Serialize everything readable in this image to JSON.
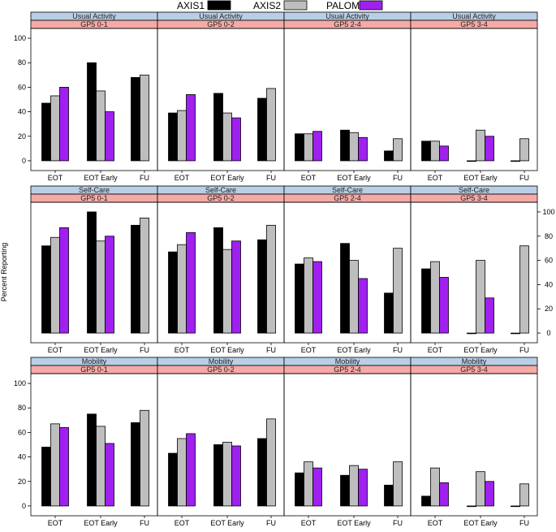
{
  "chart_data": {
    "type": "bar",
    "layout": "lattice 4 columns x 3 rows",
    "ylabel": "Percent Reporting",
    "ylim": [
      -8,
      108
    ],
    "yticks": [
      0,
      20,
      40,
      60,
      80,
      100
    ],
    "categories": [
      "EOT",
      "EOT Early",
      "FU"
    ],
    "legend": {
      "placement": "top",
      "items": [
        {
          "name": "AXIS1",
          "color": "#000000"
        },
        {
          "name": "AXIS2",
          "color": "#bebebe"
        },
        {
          "name": "PALOMA",
          "color": "#a020f0"
        }
      ]
    },
    "colors": {
      "strip_top": "#b8cfe6",
      "strip_bottom": "#f5aaa6"
    },
    "rows": [
      {
        "domain": "Usual Activity",
        "panels": [
          {
            "group": "GP5 0-1",
            "series": [
              {
                "name": "AXIS1",
                "values": [
                  47,
                  80,
                  68
                ]
              },
              {
                "name": "AXIS2",
                "values": [
                  53,
                  57,
                  70
                ]
              },
              {
                "name": "PALOMA",
                "values": [
                  60,
                  40,
                  null
                ]
              }
            ]
          },
          {
            "group": "GP5 0-2",
            "series": [
              {
                "name": "AXIS1",
                "values": [
                  39,
                  55,
                  51
                ]
              },
              {
                "name": "AXIS2",
                "values": [
                  41,
                  39,
                  59
                ]
              },
              {
                "name": "PALOMA",
                "values": [
                  54,
                  35,
                  null
                ]
              }
            ]
          },
          {
            "group": "GP5 2-4",
            "series": [
              {
                "name": "AXIS1",
                "values": [
                  22,
                  25,
                  8
                ]
              },
              {
                "name": "AXIS2",
                "values": [
                  22,
                  23,
                  18
                ]
              },
              {
                "name": "PALOMA",
                "values": [
                  24,
                  19,
                  null
                ]
              }
            ]
          },
          {
            "group": "GP5 3-4",
            "series": [
              {
                "name": "AXIS1",
                "values": [
                  16,
                  0,
                  0
                ]
              },
              {
                "name": "AXIS2",
                "values": [
                  16,
                  25,
                  18
                ]
              },
              {
                "name": "PALOMA",
                "values": [
                  12,
                  20,
                  null
                ]
              }
            ]
          }
        ]
      },
      {
        "domain": "Self-Care",
        "panels": [
          {
            "group": "GP5 0-1",
            "series": [
              {
                "name": "AXIS1",
                "values": [
                  72,
                  100,
                  89
                ]
              },
              {
                "name": "AXIS2",
                "values": [
                  79,
                  76,
                  95
                ]
              },
              {
                "name": "PALOMA",
                "values": [
                  87,
                  80,
                  null
                ]
              }
            ]
          },
          {
            "group": "GP5 0-2",
            "series": [
              {
                "name": "AXIS1",
                "values": [
                  67,
                  87,
                  77
                ]
              },
              {
                "name": "AXIS2",
                "values": [
                  73,
                  69,
                  89
                ]
              },
              {
                "name": "PALOMA",
                "values": [
                  83,
                  76,
                  null
                ]
              }
            ]
          },
          {
            "group": "GP5 2-4",
            "series": [
              {
                "name": "AXIS1",
                "values": [
                  57,
                  74,
                  33
                ]
              },
              {
                "name": "AXIS2",
                "values": [
                  62,
                  60,
                  70
                ]
              },
              {
                "name": "PALOMA",
                "values": [
                  59,
                  45,
                  null
                ]
              }
            ]
          },
          {
            "group": "GP5 3-4",
            "series": [
              {
                "name": "AXIS1",
                "values": [
                  53,
                  0,
                  0
                ]
              },
              {
                "name": "AXIS2",
                "values": [
                  59,
                  60,
                  72
                ]
              },
              {
                "name": "PALOMA",
                "values": [
                  46,
                  29,
                  null
                ]
              }
            ]
          }
        ]
      },
      {
        "domain": "Mobility",
        "panels": [
          {
            "group": "GP5 0-1",
            "series": [
              {
                "name": "AXIS1",
                "values": [
                  48,
                  75,
                  68
                ]
              },
              {
                "name": "AXIS2",
                "values": [
                  67,
                  65,
                  78
                ]
              },
              {
                "name": "PALOMA",
                "values": [
                  64,
                  51,
                  null
                ]
              }
            ]
          },
          {
            "group": "GP5 0-2",
            "series": [
              {
                "name": "AXIS1",
                "values": [
                  43,
                  50,
                  55
                ]
              },
              {
                "name": "AXIS2",
                "values": [
                  55,
                  52,
                  71
                ]
              },
              {
                "name": "PALOMA",
                "values": [
                  59,
                  49,
                  null
                ]
              }
            ]
          },
          {
            "group": "GP5 2-4",
            "series": [
              {
                "name": "AXIS1",
                "values": [
                  27,
                  25,
                  17
                ]
              },
              {
                "name": "AXIS2",
                "values": [
                  36,
                  33,
                  36
                ]
              },
              {
                "name": "PALOMA",
                "values": [
                  31,
                  30,
                  null
                ]
              }
            ]
          },
          {
            "group": "GP5 3-4",
            "series": [
              {
                "name": "AXIS1",
                "values": [
                  8,
                  0,
                  0
                ]
              },
              {
                "name": "AXIS2",
                "values": [
                  31,
                  28,
                  18
                ]
              },
              {
                "name": "PALOMA",
                "values": [
                  19,
                  20,
                  null
                ]
              }
            ]
          }
        ]
      }
    ]
  }
}
